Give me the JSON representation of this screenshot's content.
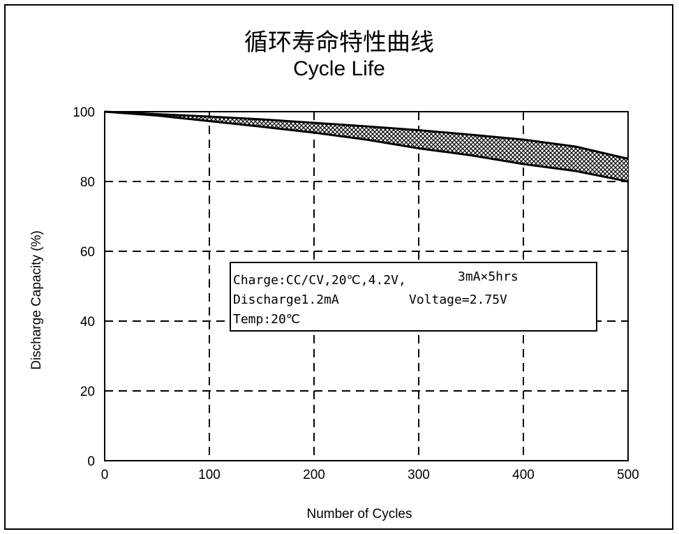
{
  "chart_data": {
    "type": "area",
    "title": "循环寿命特性曲线",
    "subtitle": "Cycle Life",
    "xlabel": "Number of Cycles",
    "ylabel": "Discharge Capacity (%)",
    "xlim": [
      0,
      500
    ],
    "ylim": [
      0,
      100
    ],
    "x_ticks": [
      "0",
      "100",
      "200",
      "300",
      "400",
      "500"
    ],
    "y_ticks": [
      "0",
      "20",
      "40",
      "60",
      "80",
      "100"
    ],
    "grid": true,
    "band": {
      "x": [
        0,
        50,
        100,
        150,
        200,
        250,
        300,
        350,
        400,
        450,
        500
      ],
      "upper": [
        100,
        99.3,
        98.6,
        97.8,
        96.8,
        95.8,
        94.7,
        93.4,
        92.0,
        90.0,
        86.5
      ],
      "lower": [
        100,
        98.9,
        97.3,
        95.7,
        94.0,
        92.0,
        89.5,
        87.5,
        85.0,
        83.0,
        80.0
      ]
    },
    "annotation": {
      "line1": "Charge:CC/CV,20℃,4.2V,",
      "line1b": "3mA×5hrs",
      "line2": "Discharge1.2mA",
      "line2b": "Voltage=2.75V",
      "line3": "Temp:20℃"
    }
  }
}
